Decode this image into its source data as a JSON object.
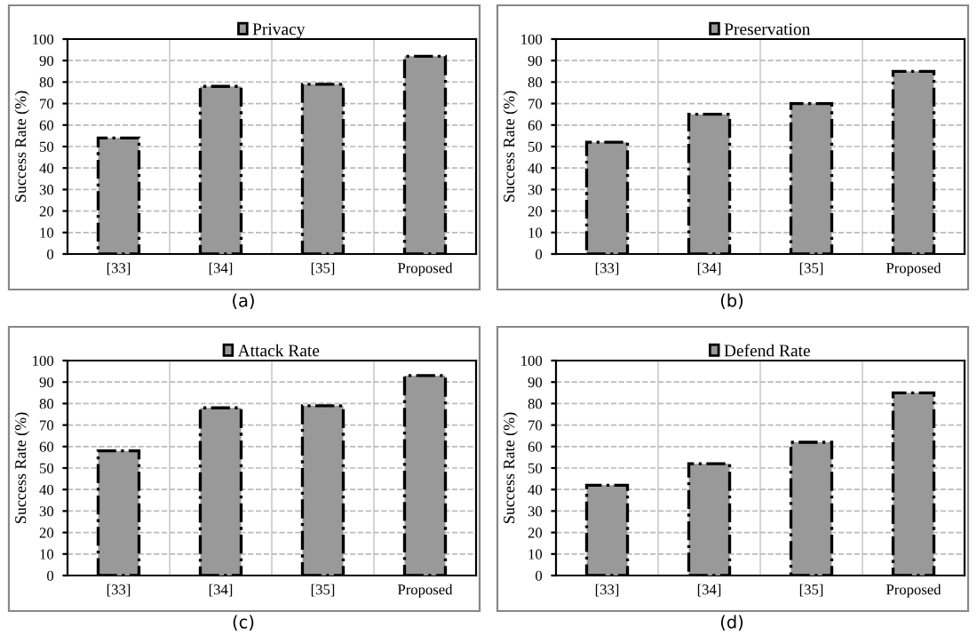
{
  "chart_data": [
    {
      "type": "bar",
      "categories": [
        "[33]",
        "[34]",
        "[35]",
        "Proposed"
      ],
      "series": [
        {
          "name": "Privacy",
          "color": "#999999",
          "values": [
            54,
            78,
            79,
            92
          ]
        }
      ],
      "ylabel": "Success Rate (%)",
      "ylim": [
        0,
        100
      ],
      "yticks": [
        0,
        10,
        20,
        30,
        40,
        50,
        60,
        70,
        80,
        90,
        100
      ],
      "grid": true,
      "legend": "top",
      "annotations": [
        "(a)"
      ]
    },
    {
      "type": "bar",
      "categories": [
        "[33]",
        "[34]",
        "[35]",
        "Proposed"
      ],
      "series": [
        {
          "name": "Preservation",
          "color": "#999999",
          "values": [
            52,
            65,
            70,
            85
          ]
        }
      ],
      "ylabel": "Success Rate (%)",
      "ylim": [
        0,
        100
      ],
      "yticks": [
        0,
        10,
        20,
        30,
        40,
        50,
        60,
        70,
        80,
        90,
        100
      ],
      "grid": true,
      "legend": "top",
      "annotations": [
        "(b)"
      ]
    },
    {
      "type": "bar",
      "categories": [
        "[33]",
        "[34]",
        "[35]",
        "Proposed"
      ],
      "series": [
        {
          "name": "Attack Rate",
          "color": "#999999",
          "values": [
            58,
            78,
            79,
            93
          ]
        }
      ],
      "ylabel": "Success Rate (%)",
      "ylim": [
        0,
        100
      ],
      "yticks": [
        0,
        10,
        20,
        30,
        40,
        50,
        60,
        70,
        80,
        90,
        100
      ],
      "grid": true,
      "legend": "top",
      "annotations": [
        "(c)"
      ]
    },
    {
      "type": "bar",
      "categories": [
        "[33]",
        "[34]",
        "[35]",
        "Proposed"
      ],
      "series": [
        {
          "name": "Defend Rate",
          "color": "#999999",
          "values": [
            42,
            52,
            62,
            85
          ]
        }
      ],
      "ylabel": "Success Rate (%)",
      "ylim": [
        0,
        100
      ],
      "yticks": [
        0,
        10,
        20,
        30,
        40,
        50,
        60,
        70,
        80,
        90,
        100
      ],
      "grid": true,
      "legend": "top",
      "annotations": [
        "(d)"
      ]
    }
  ]
}
